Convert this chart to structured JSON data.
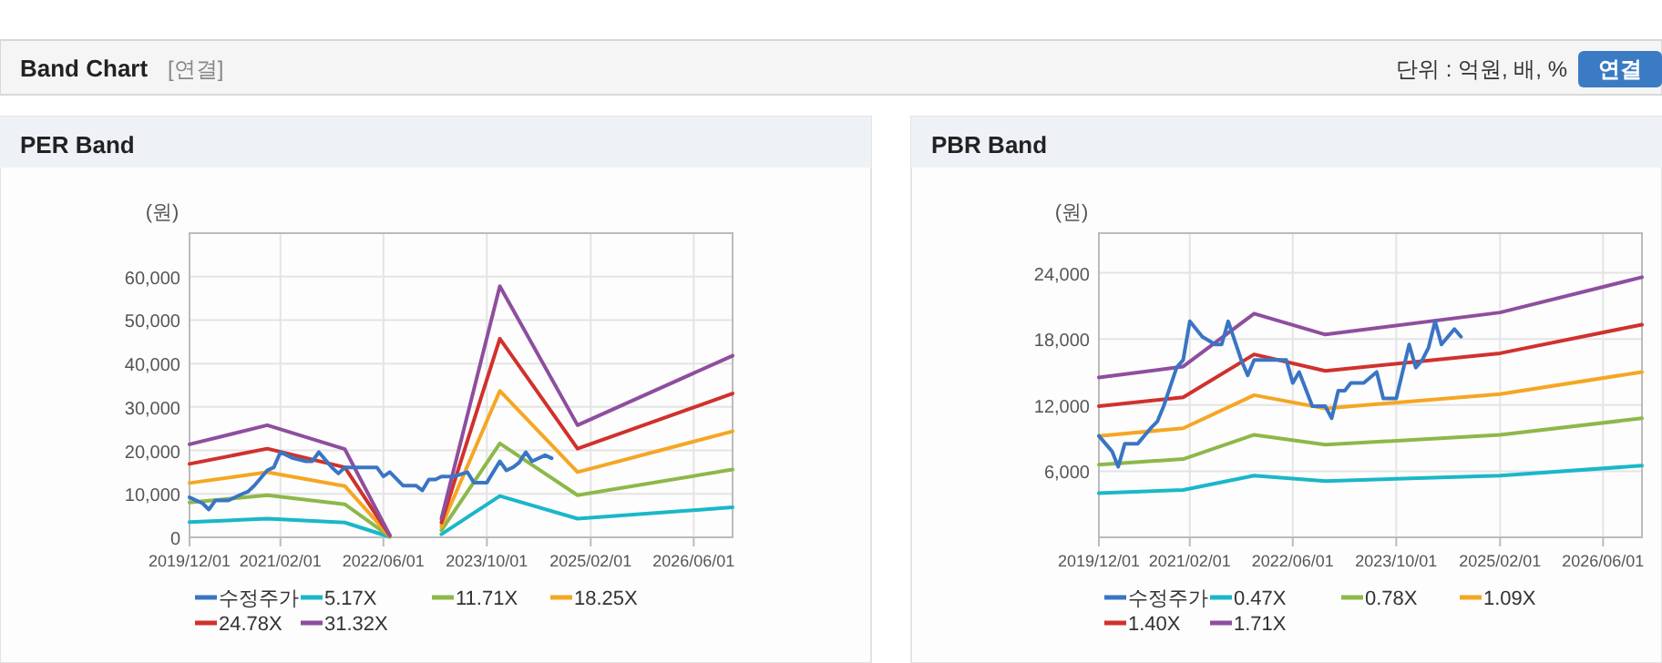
{
  "chart_data": [
    {
      "type": "other",
      "title": "Band Chart",
      "annotations": [
        "[연결]",
        "단위 : 억원, 배, %",
        "연결"
      ]
    },
    {
      "type": "line",
      "title": "PER Band",
      "ylabel": "(원)",
      "xlim": [
        "2019-12-01",
        "2026-12-01"
      ],
      "xticks": [
        {
          "value": "2019-12-01",
          "label": "2019/12/01"
        },
        {
          "value": "2021-02-01",
          "label": "2021/02/01"
        },
        {
          "value": "2022-06-01",
          "label": "2022/06/01"
        },
        {
          "value": "2023-10-01",
          "label": "2023/10/01"
        },
        {
          "value": "2025-02-01",
          "label": "2025/02/01"
        },
        {
          "value": "2026-06-01",
          "label": "2026/06/01"
        }
      ],
      "ylim": [
        0,
        70000
      ],
      "yticks": [
        0,
        {
          "value": 10000,
          "label": "10,000"
        },
        {
          "value": 20000,
          "label": "20,000"
        },
        {
          "value": 30000,
          "label": "30,000"
        },
        {
          "value": 40000,
          "label": "40,000"
        },
        {
          "value": 50000,
          "label": "50,000"
        },
        {
          "value": 60000,
          "label": "60,000"
        }
      ],
      "grid": true,
      "legend": "bottom",
      "series": [
        {
          "name": "수정주가",
          "color": "#3a75c4",
          "x": [
            "2019-12",
            "2020-02",
            "2020-03",
            "2020-04",
            "2020-06",
            "2020-08",
            "2020-09",
            "2020-10",
            "2020-12",
            "2021-01",
            "2021-02",
            "2021-04",
            "2021-06",
            "2021-07",
            "2021-08",
            "2021-10",
            "2021-11",
            "2021-12",
            "2022-02",
            "2022-05",
            "2022-06",
            "2022-07",
            "2022-09",
            "2022-11",
            "2022-12",
            "2023-01",
            "2023-02",
            "2023-03",
            "2023-05",
            "2023-07",
            "2023-08",
            "2023-10",
            "2023-12",
            "2024-01",
            "2024-02",
            "2024-03",
            "2024-04",
            "2024-05",
            "2024-07",
            "2024-08"
          ],
          "values": [
            9200,
            7800,
            6400,
            8500,
            8500,
            9900,
            10500,
            11900,
            15400,
            16100,
            19600,
            18200,
            17500,
            17500,
            19600,
            16100,
            14700,
            16100,
            16100,
            16100,
            14000,
            15000,
            11900,
            11900,
            10800,
            13300,
            13300,
            14000,
            14000,
            15000,
            12600,
            12600,
            17500,
            15400,
            16100,
            17200,
            19600,
            17500,
            18900,
            18200
          ]
        },
        {
          "name": "5.17X",
          "color": "#1ab7c8",
          "x": [
            "2019-12",
            "2020-12",
            "2021-12",
            "2022-07",
            "2022-11",
            "2023-03",
            "2023-12",
            "2024-12",
            "2026-12"
          ],
          "values": [
            3500,
            4300,
            3400,
            100,
            null,
            700,
            9500,
            4300,
            6900
          ]
        },
        {
          "name": "11.71X",
          "color": "#8db84a",
          "x": [
            "2019-12",
            "2020-12",
            "2021-12",
            "2022-07",
            "2022-11",
            "2023-03",
            "2023-12",
            "2024-12",
            "2026-12"
          ],
          "values": [
            8000,
            9700,
            7600,
            200,
            null,
            1600,
            21600,
            9700,
            15600
          ]
        },
        {
          "name": "18.25X",
          "color": "#f5a623",
          "x": [
            "2019-12",
            "2020-12",
            "2021-12",
            "2022-07",
            "2022-11",
            "2023-03",
            "2023-12",
            "2024-12",
            "2026-12"
          ],
          "values": [
            12500,
            15000,
            11800,
            300,
            null,
            2500,
            33700,
            15000,
            24400
          ]
        },
        {
          "name": "24.78X",
          "color": "#d0312d",
          "x": [
            "2019-12",
            "2020-12",
            "2021-12",
            "2022-07",
            "2022-11",
            "2023-03",
            "2023-12",
            "2024-12",
            "2026-12"
          ],
          "values": [
            16900,
            20400,
            16100,
            400,
            null,
            3400,
            45700,
            20400,
            33100
          ]
        },
        {
          "name": "31.32X",
          "color": "#8e4e9e",
          "x": [
            "2019-12",
            "2020-12",
            "2021-12",
            "2022-07",
            "2022-11",
            "2023-03",
            "2023-12",
            "2024-12",
            "2026-12"
          ],
          "values": [
            21400,
            25800,
            20300,
            500,
            null,
            4300,
            57800,
            25800,
            41800
          ]
        }
      ]
    },
    {
      "type": "line",
      "title": "PBR Band",
      "ylabel": "(원)",
      "xlim": [
        "2019-12-01",
        "2026-12-01"
      ],
      "xticks": [
        {
          "value": "2019-12-01",
          "label": "2019/12/01"
        },
        {
          "value": "2021-02-01",
          "label": "2021/02/01"
        },
        {
          "value": "2022-06-01",
          "label": "2022/06/01"
        },
        {
          "value": "2023-10-01",
          "label": "2023/10/01"
        },
        {
          "value": "2025-02-01",
          "label": "2025/02/01"
        },
        {
          "value": "2026-06-01",
          "label": "2026/06/01"
        }
      ],
      "ylim": [
        0,
        27600
      ],
      "yticks": [
        {
          "value": 6000,
          "label": "6,000"
        },
        {
          "value": 12000,
          "label": "12,000"
        },
        {
          "value": 18000,
          "label": "18,000"
        },
        {
          "value": 24000,
          "label": "24,000"
        }
      ],
      "grid": true,
      "legend": "bottom",
      "series": [
        {
          "name": "수정주가",
          "color": "#3a75c4",
          "x": [
            "2019-12",
            "2020-02",
            "2020-03",
            "2020-04",
            "2020-06",
            "2020-08",
            "2020-09",
            "2020-10",
            "2020-12",
            "2021-01",
            "2021-02",
            "2021-04",
            "2021-06",
            "2021-07",
            "2021-08",
            "2021-10",
            "2021-11",
            "2021-12",
            "2022-02",
            "2022-05",
            "2022-06",
            "2022-07",
            "2022-09",
            "2022-11",
            "2022-12",
            "2023-01",
            "2023-02",
            "2023-03",
            "2023-05",
            "2023-07",
            "2023-08",
            "2023-10",
            "2023-12",
            "2024-01",
            "2024-02",
            "2024-03",
            "2024-04",
            "2024-05",
            "2024-07",
            "2024-08"
          ],
          "values": [
            9200,
            7800,
            6400,
            8500,
            8500,
            9900,
            10500,
            11900,
            15400,
            16100,
            19600,
            18200,
            17500,
            17500,
            19600,
            16100,
            14700,
            16100,
            16100,
            16100,
            14000,
            15000,
            11900,
            11900,
            10800,
            13300,
            13300,
            14000,
            14000,
            15000,
            12600,
            12600,
            17500,
            15400,
            16100,
            17200,
            19600,
            17500,
            18900,
            18200
          ]
        },
        {
          "name": "0.47X",
          "color": "#1ab7c8",
          "x": [
            "2019-12",
            "2021-01",
            "2021-12",
            "2022-11",
            "2025-02",
            "2026-12"
          ],
          "values": [
            4000,
            4300,
            5600,
            5100,
            5600,
            6500
          ]
        },
        {
          "name": "0.78X",
          "color": "#8db84a",
          "x": [
            "2019-12",
            "2021-01",
            "2021-12",
            "2022-11",
            "2025-02",
            "2026-12"
          ],
          "values": [
            6600,
            7100,
            9300,
            8400,
            9300,
            10800
          ]
        },
        {
          "name": "1.09X",
          "color": "#f5a623",
          "x": [
            "2019-12",
            "2021-01",
            "2021-12",
            "2022-11",
            "2025-02",
            "2026-12"
          ],
          "values": [
            9200,
            9900,
            12900,
            11700,
            13000,
            15000
          ]
        },
        {
          "name": "1.40X",
          "color": "#d0312d",
          "x": [
            "2019-12",
            "2021-01",
            "2021-12",
            "2022-11",
            "2025-02",
            "2026-12"
          ],
          "values": [
            11900,
            12700,
            16600,
            15100,
            16700,
            19300
          ]
        },
        {
          "name": "1.71X",
          "color": "#8e4e9e",
          "x": [
            "2019-12",
            "2021-01",
            "2021-12",
            "2022-11",
            "2025-02",
            "2026-12"
          ],
          "values": [
            14500,
            15500,
            20300,
            18400,
            20400,
            23600
          ]
        }
      ]
    }
  ]
}
